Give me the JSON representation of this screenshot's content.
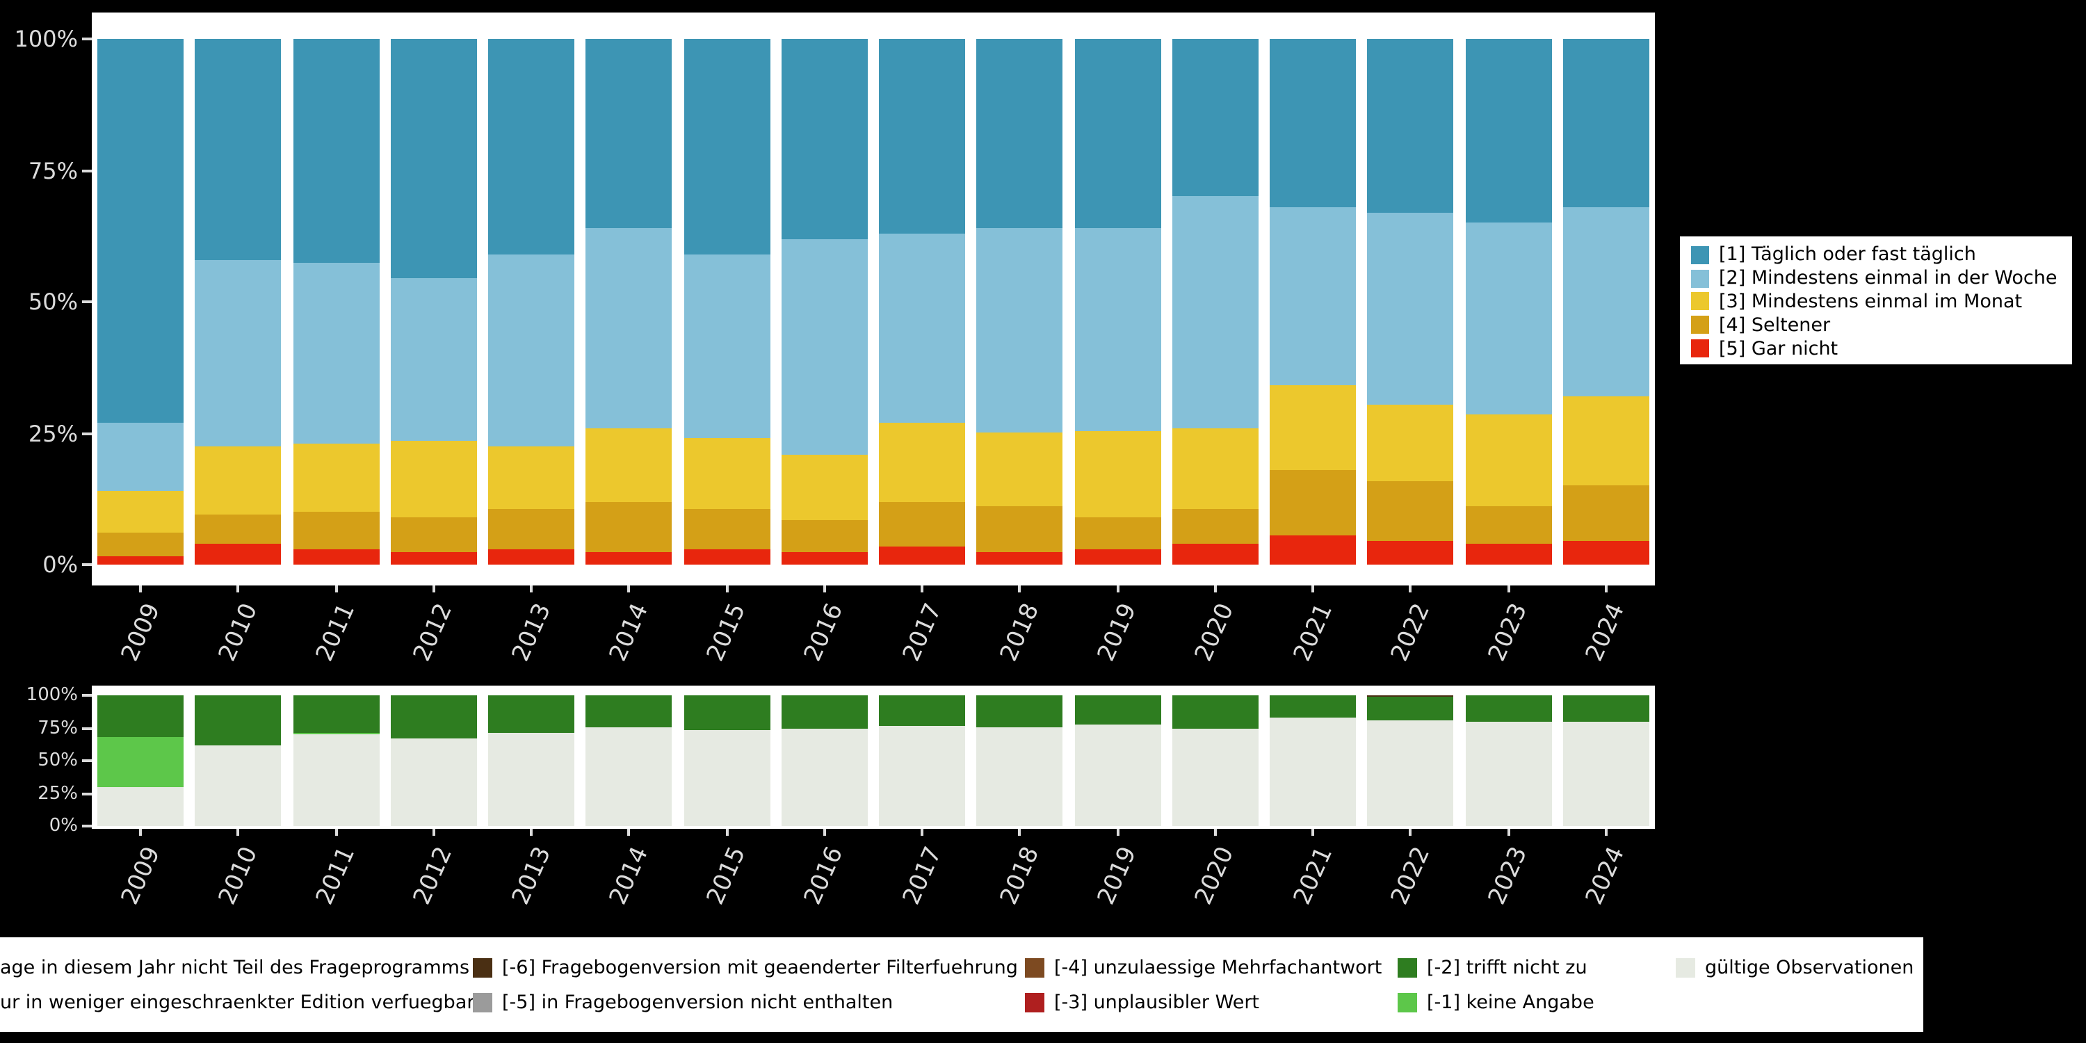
{
  "colors": {
    "background": "#000000",
    "panel": "#ffffff",
    "axis_text": "#dcdcdc",
    "legend_background": "#ffffff"
  },
  "chart_data": [
    {
      "type": "bar",
      "stacked": true,
      "orientation": "vertical",
      "unit": "percent",
      "ylim": [
        0,
        100
      ],
      "yticks": [
        "0%",
        "25%",
        "50%",
        "75%",
        "100%"
      ],
      "grid": false,
      "legend_position": "right",
      "categories": [
        "2009",
        "2010",
        "2011",
        "2012",
        "2013",
        "2014",
        "2015",
        "2016",
        "2017",
        "2018",
        "2019",
        "2020",
        "2021",
        "2022",
        "2023",
        "2024"
      ],
      "series": [
        {
          "name": "[1] Täglich oder fast täglich",
          "color": "#3d95b4",
          "values": [
            73,
            42,
            42.5,
            45.5,
            41,
            36,
            41,
            38,
            37,
            36,
            36,
            30,
            32,
            33,
            35,
            32
          ]
        },
        {
          "name": "[2] Mindestens einmal in der Woche",
          "color": "#85c0d8",
          "values": [
            13,
            35.5,
            34.5,
            31,
            36.5,
            38,
            35,
            41,
            36,
            39,
            38.5,
            44,
            34,
            36.5,
            36.5,
            36
          ]
        },
        {
          "name": "[3] Mindestens einmal im Monat",
          "color": "#ecc82d",
          "values": [
            8,
            13,
            13,
            14.5,
            12,
            14,
            13.5,
            12.5,
            15,
            14,
            16.5,
            15.5,
            16,
            14.5,
            17.5,
            17
          ]
        },
        {
          "name": "[4] Seltener",
          "color": "#d4a017",
          "values": [
            4.5,
            5.5,
            7,
            6.5,
            7.5,
            9.5,
            7.5,
            6,
            8.5,
            8.5,
            6,
            6.5,
            12.5,
            11.5,
            7,
            10.5
          ]
        },
        {
          "name": "[5] Gar nicht",
          "color": "#e8260d",
          "values": [
            1.5,
            4,
            3,
            2.5,
            3,
            2.5,
            3,
            2.5,
            3.5,
            2.5,
            3,
            4,
            5.5,
            4.5,
            4,
            4.5
          ]
        }
      ]
    },
    {
      "type": "bar",
      "stacked": true,
      "orientation": "vertical",
      "unit": "percent",
      "ylim": [
        0,
        100
      ],
      "yticks": [
        "0%",
        "25%",
        "50%",
        "75%",
        "100%"
      ],
      "grid": false,
      "categories": [
        "2009",
        "2010",
        "2011",
        "2012",
        "2013",
        "2014",
        "2015",
        "2016",
        "2017",
        "2018",
        "2019",
        "2020",
        "2021",
        "2022",
        "2023",
        "2024"
      ],
      "series": [
        {
          "name": "[-6] Fragebogenversion mit geaenderter Filterfuehrung",
          "color": "#4a2f13",
          "values": [
            0,
            0,
            0,
            0,
            0,
            0,
            0,
            0,
            0,
            0,
            0,
            0,
            0,
            0.7,
            0,
            0
          ]
        },
        {
          "name": "[-2] trifft nicht zu",
          "color": "#2e7d20",
          "values": [
            32,
            38,
            28.5,
            33,
            29,
            24,
            27,
            25,
            23,
            24,
            22,
            26,
            17,
            18.3,
            20,
            20
          ]
        },
        {
          "name": "[-1] keine Angabe",
          "color": "#5dc74a",
          "values": [
            38,
            0,
            1.5,
            0,
            0,
            0,
            0,
            0,
            0,
            0,
            0,
            0,
            0,
            0,
            0,
            0
          ]
        },
        {
          "name": "gültige Observationen",
          "color": "#e6eae2",
          "values": [
            30,
            62,
            70,
            67,
            71,
            76,
            73,
            75,
            77,
            76,
            78,
            74,
            83,
            81,
            80,
            80
          ]
        }
      ]
    }
  ],
  "legend_top": {
    "items": [
      {
        "label": "[1] Täglich oder fast täglich",
        "color": "#3d95b4"
      },
      {
        "label": "[2] Mindestens einmal in der Woche",
        "color": "#85c0d8"
      },
      {
        "label": "[3] Mindestens einmal im Monat",
        "color": "#ecc82d"
      },
      {
        "label": "[4] Seltener",
        "color": "#d4a017"
      },
      {
        "label": "[5] Gar nicht",
        "color": "#e8260d"
      }
    ]
  },
  "legend_bottom": {
    "rows": [
      [
        {
          "label": "age in diesem Jahr nicht Teil des Frageprogramms",
          "color": null
        },
        {
          "label": "[-6] Fragebogenversion mit geaenderter Filterfuehrung",
          "color": "#4a2f13"
        },
        {
          "label": "[-4] unzulaessige Mehrfachantwort",
          "color": "#7d4a21"
        },
        {
          "label": "[-2] trifft nicht zu",
          "color": "#2e7d20"
        },
        {
          "label": "gültige Observationen",
          "color": "#e6eae2"
        }
      ],
      [
        {
          "label": "ur in weniger eingeschraenkter Edition verfuegbar",
          "color": null
        },
        {
          "label": "[-5] in Fragebogenversion nicht enthalten",
          "color": "#9b9b9b"
        },
        {
          "label": "[-3] unplausibler Wert",
          "color": "#af1f1f"
        },
        {
          "label": "[-1] keine Angabe",
          "color": "#5dc74a"
        }
      ]
    ]
  }
}
